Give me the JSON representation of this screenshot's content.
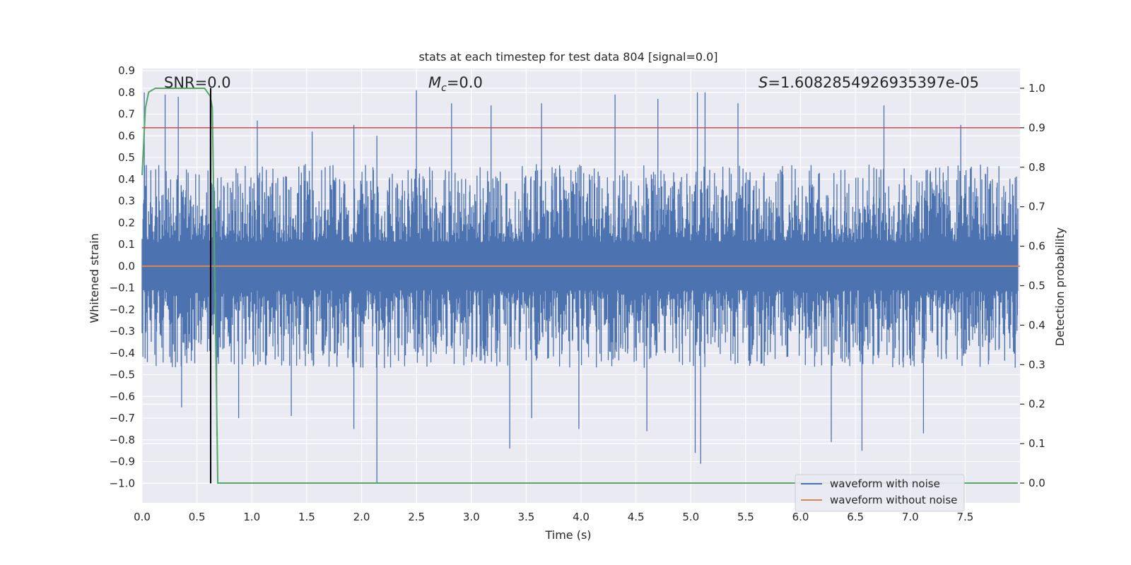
{
  "chart_data": {
    "type": "line",
    "title": "stats at each timestep for test data 804 [signal=0.0]",
    "xlabel": "Time (s)",
    "ylabel": "Whitened strain",
    "y2label": "Detection probability",
    "xlim": [
      0.0,
      8.0
    ],
    "ylim": [
      -1.09,
      0.91
    ],
    "y2lim": [
      -0.05,
      1.05
    ],
    "x_ticks": [
      0.0,
      0.5,
      1.0,
      1.5,
      2.0,
      2.5,
      3.0,
      3.5,
      4.0,
      4.5,
      5.0,
      5.5,
      6.0,
      6.5,
      7.0,
      7.5
    ],
    "x_tick_labels": [
      "0.0",
      "0.5",
      "1.0",
      "1.5",
      "2.0",
      "2.5",
      "3.0",
      "3.5",
      "4.0",
      "4.5",
      "5.0",
      "5.5",
      "6.0",
      "6.5",
      "7.0",
      "7.5"
    ],
    "y_ticks": [
      0.9,
      0.8,
      0.7,
      0.6,
      0.5,
      0.4,
      0.3,
      0.2,
      0.1,
      0.0,
      -0.1,
      -0.2,
      -0.3,
      -0.4,
      -0.5,
      -0.6,
      -0.7,
      -0.8,
      -0.9,
      -1.0
    ],
    "y_tick_labels": [
      "0.9",
      "0.8",
      "0.7",
      "0.6",
      "0.5",
      "0.4",
      "0.3",
      "0.2",
      "0.1",
      "0.0",
      "−0.1",
      "−0.2",
      "−0.3",
      "−0.4",
      "−0.5",
      "−0.6",
      "−0.7",
      "−0.8",
      "−0.9",
      "−1.0"
    ],
    "y2_ticks": [
      1.0,
      0.9,
      0.8,
      0.7,
      0.6,
      0.5,
      0.4,
      0.3,
      0.2,
      0.1,
      0.0
    ],
    "y2_tick_labels": [
      "1.0",
      "0.9",
      "0.8",
      "0.7",
      "0.6",
      "0.5",
      "0.4",
      "0.3",
      "0.2",
      "0.1",
      "0.0"
    ],
    "annotations": {
      "snr": "SNR=0.0",
      "mc_symbol": "M",
      "mc_subscript": "c",
      "mc_value": "=0.0",
      "s_symbol": "S",
      "s_value": "=1.6082854926935397e-05"
    },
    "series": [
      {
        "name": "waveform with noise",
        "color": "#4c72b0",
        "axis": "left",
        "description_values": {
          "typical_envelope_upper": 0.3,
          "typical_envelope_lower": -0.3,
          "max": 0.81,
          "min": -1.0,
          "spikes": [
            {
              "x": 0.02,
              "y": 0.8
            },
            {
              "x": 0.21,
              "y": 0.79
            },
            {
              "x": 0.33,
              "y": 0.78
            },
            {
              "x": 0.62,
              "y": 0.79
            },
            {
              "x": 1.05,
              "y": 0.67
            },
            {
              "x": 1.55,
              "y": 0.62
            },
            {
              "x": 1.93,
              "y": 0.65
            },
            {
              "x": 2.14,
              "y": 0.6
            },
            {
              "x": 2.5,
              "y": 0.81
            },
            {
              "x": 2.82,
              "y": 0.75
            },
            {
              "x": 3.18,
              "y": 0.74
            },
            {
              "x": 3.64,
              "y": 0.75
            },
            {
              "x": 4.31,
              "y": 0.79
            },
            {
              "x": 4.7,
              "y": 0.77
            },
            {
              "x": 5.06,
              "y": 0.8
            },
            {
              "x": 5.13,
              "y": 0.8
            },
            {
              "x": 5.43,
              "y": 0.75
            },
            {
              "x": 6.76,
              "y": 0.74
            },
            {
              "x": 7.46,
              "y": 0.65
            },
            {
              "x": 0.36,
              "y": -0.65
            },
            {
              "x": 0.68,
              "y": -0.78
            },
            {
              "x": 0.88,
              "y": -0.7
            },
            {
              "x": 1.36,
              "y": -0.69
            },
            {
              "x": 1.93,
              "y": -0.75
            },
            {
              "x": 2.14,
              "y": -1.0
            },
            {
              "x": 3.35,
              "y": -0.84
            },
            {
              "x": 3.55,
              "y": -0.7
            },
            {
              "x": 3.98,
              "y": -0.75
            },
            {
              "x": 4.6,
              "y": -0.76
            },
            {
              "x": 5.04,
              "y": -0.86
            },
            {
              "x": 5.09,
              "y": -0.91
            },
            {
              "x": 6.28,
              "y": -0.81
            },
            {
              "x": 6.56,
              "y": -0.85
            },
            {
              "x": 7.12,
              "y": -0.77
            }
          ]
        }
      },
      {
        "name": "waveform without noise",
        "color": "#dd8452",
        "axis": "left",
        "x": [
          0.0,
          8.0
        ],
        "y": [
          0.0,
          0.0
        ]
      },
      {
        "name": "detection probability",
        "color": "#55a868",
        "axis": "right",
        "x": [
          0.0,
          0.03,
          0.06,
          0.12,
          0.2,
          0.3,
          0.4,
          0.5,
          0.57,
          0.62,
          0.64,
          0.69,
          0.75,
          7.98
        ],
        "y": [
          0.78,
          0.95,
          0.99,
          1.0,
          1.0,
          1.0,
          1.0,
          1.0,
          1.0,
          0.98,
          0.95,
          0.0,
          0.0,
          0.0
        ]
      }
    ],
    "reference_lines": [
      {
        "name": "threshold",
        "orientation": "horizontal",
        "axis": "right",
        "value": 0.9,
        "color": "#c44e52"
      },
      {
        "name": "event-time",
        "orientation": "vertical",
        "axis": "left",
        "x": 0.625,
        "y_from": -1.0,
        "y_to": 0.82,
        "color": "#000000"
      }
    ],
    "legend": {
      "location": "lower-right",
      "entries": [
        {
          "label": "waveform with noise",
          "color": "#4c72b0"
        },
        {
          "label": "waveform without noise",
          "color": "#dd8452"
        }
      ]
    },
    "style": {
      "axes_facecolor": "#eaeaf2",
      "grid_color": "#ffffff"
    }
  }
}
